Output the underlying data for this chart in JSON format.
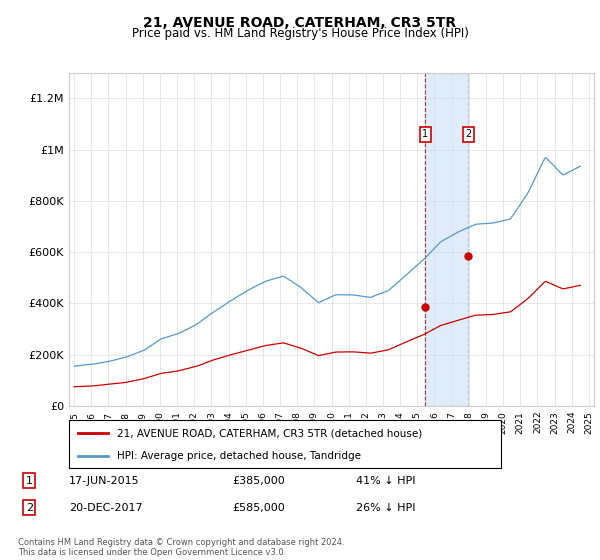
{
  "title": "21, AVENUE ROAD, CATERHAM, CR3 5TR",
  "subtitle": "Price paid vs. HM Land Registry's House Price Index (HPI)",
  "ylim": [
    0,
    1300000
  ],
  "yticks": [
    0,
    200000,
    400000,
    600000,
    800000,
    1000000,
    1200000
  ],
  "ytick_labels": [
    "£0",
    "£200K",
    "£400K",
    "£600K",
    "£800K",
    "£1M",
    "£1.2M"
  ],
  "hpi_color": "#5599cc",
  "price_color": "#cc0000",
  "transaction1": {
    "date": "17-JUN-2015",
    "price": 385000,
    "label": "1",
    "x": 2015.46
  },
  "transaction2": {
    "date": "20-DEC-2017",
    "price": 585000,
    "label": "2",
    "x": 2017.96
  },
  "legend_house_label": "21, AVENUE ROAD, CATERHAM, CR3 5TR (detached house)",
  "legend_hpi_label": "HPI: Average price, detached house, Tandridge",
  "footer": "Contains HM Land Registry data © Crown copyright and database right 2024.\nThis data is licensed under the Open Government Licence v3.0.",
  "xtick_years": [
    1995,
    1996,
    1997,
    1998,
    1999,
    2000,
    2001,
    2002,
    2003,
    2004,
    2005,
    2006,
    2007,
    2008,
    2009,
    2010,
    2011,
    2012,
    2013,
    2014,
    2015,
    2016,
    2017,
    2018,
    2019,
    2020,
    2021,
    2022,
    2023,
    2024,
    2025
  ]
}
